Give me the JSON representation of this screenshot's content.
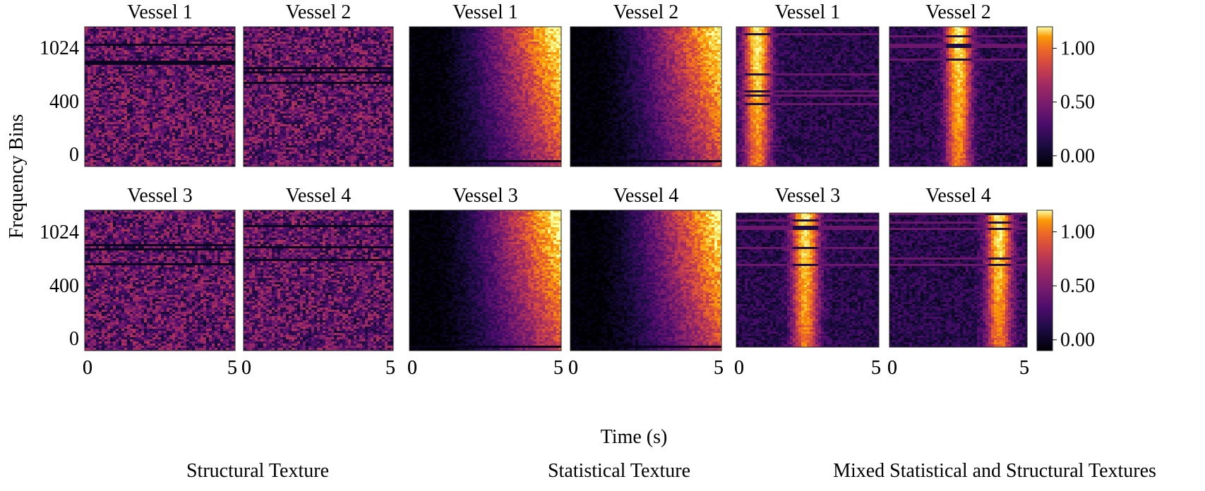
{
  "figure": {
    "ylabel": "Frequency Bins",
    "xlabel": "Time (s)",
    "group_captions": [
      "Structural Texture",
      "Statistical Texture",
      "Mixed Statistical and Structural Textures"
    ],
    "colormap": "inferno",
    "colorbar_ticks": [
      "1.00",
      "0.50",
      "0.00"
    ]
  },
  "chart_data": [
    {
      "type": "heatmap",
      "group": "Structural Texture",
      "title": "Vessel 1",
      "texture": "structural",
      "xlim": [
        0,
        5
      ],
      "xticks": [
        "0",
        "5"
      ],
      "yticks": [
        "1024",
        "400",
        "0"
      ],
      "note": "uniform noise with horizontal dark lines"
    },
    {
      "type": "heatmap",
      "group": "Structural Texture",
      "title": "Vessel 2",
      "texture": "structural",
      "xlim": [
        0,
        5
      ],
      "xticks": [
        "0",
        "5"
      ],
      "note": "uniform noise with horizontal dark lines"
    },
    {
      "type": "heatmap",
      "group": "Statistical Texture",
      "title": "Vessel 1",
      "texture": "statistical",
      "xlim": [
        0,
        5
      ],
      "xticks": [
        "0",
        "5"
      ],
      "note": "intensity increases toward late time, high frequency"
    },
    {
      "type": "heatmap",
      "group": "Statistical Texture",
      "title": "Vessel 2",
      "texture": "statistical",
      "xlim": [
        0,
        5
      ],
      "xticks": [
        "0",
        "5"
      ],
      "note": "intensity increases toward late time, high frequency"
    },
    {
      "type": "heatmap",
      "group": "Mixed Statistical and Structural Textures",
      "title": "Vessel 1",
      "texture": "mixed",
      "xlim": [
        0,
        5
      ],
      "xticks": [
        "0",
        "5"
      ],
      "band_time": 0.7,
      "colorbar": [
        0,
        1.2
      ]
    },
    {
      "type": "heatmap",
      "group": "Mixed Statistical and Structural Textures",
      "title": "Vessel 2",
      "texture": "mixed",
      "xlim": [
        0,
        5
      ],
      "xticks": [
        "0",
        "5"
      ],
      "band_time": 2.5,
      "colorbar": [
        0,
        1.2
      ]
    },
    {
      "type": "heatmap",
      "group": "Structural Texture",
      "title": "Vessel 3",
      "texture": "structural",
      "xlim": [
        0,
        5
      ],
      "xticks": [
        "0",
        "5"
      ],
      "yticks": [
        "1024",
        "400",
        "0"
      ]
    },
    {
      "type": "heatmap",
      "group": "Structural Texture",
      "title": "Vessel 4",
      "texture": "structural",
      "xlim": [
        0,
        5
      ],
      "xticks": [
        "0",
        "5"
      ]
    },
    {
      "type": "heatmap",
      "group": "Statistical Texture",
      "title": "Vessel 3",
      "texture": "statistical",
      "xlim": [
        0,
        5
      ],
      "xticks": [
        "0",
        "5"
      ]
    },
    {
      "type": "heatmap",
      "group": "Statistical Texture",
      "title": "Vessel 4",
      "texture": "statistical",
      "xlim": [
        0,
        5
      ],
      "xticks": [
        "0",
        "5"
      ]
    },
    {
      "type": "heatmap",
      "group": "Mixed Statistical and Structural Textures",
      "title": "Vessel 3",
      "texture": "mixed",
      "xlim": [
        0,
        5
      ],
      "xticks": [
        "0",
        "5"
      ],
      "band_time": 2.4,
      "colorbar": [
        0,
        1.2
      ]
    },
    {
      "type": "heatmap",
      "group": "Mixed Statistical and Structural Textures",
      "title": "Vessel 4",
      "texture": "mixed",
      "xlim": [
        0,
        5
      ],
      "xticks": [
        "0",
        "5"
      ],
      "band_time": 4.0,
      "colorbar": [
        0,
        1.2
      ]
    }
  ]
}
